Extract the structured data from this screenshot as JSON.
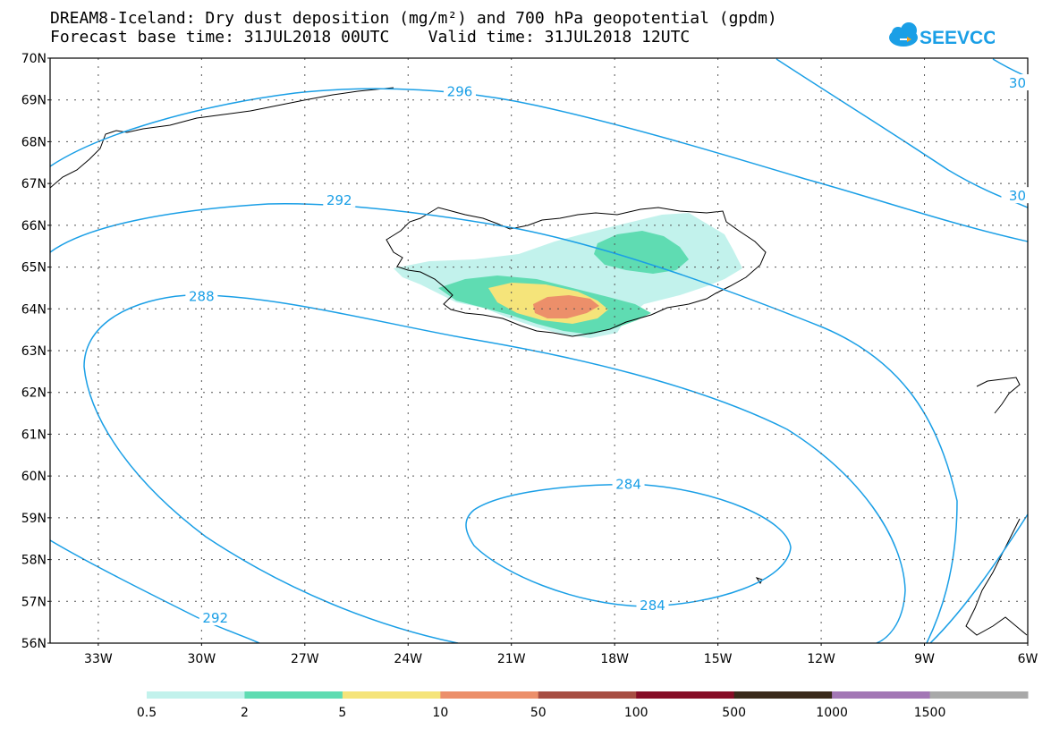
{
  "title_line1": "DREAM8-Iceland: Dry dust deposition (mg/m²) and 700 hPa geopotential (gpdm)",
  "title_line2": "Forecast base time: 31JUL2018 00UTC    Valid time: 31JUL2018 12UTC",
  "logo_text": "SEEVCCC",
  "lat_labels": [
    "70N",
    "69N",
    "68N",
    "67N",
    "66N",
    "65N",
    "64N",
    "63N",
    "62N",
    "61N",
    "60N",
    "59N",
    "58N",
    "57N",
    "56N"
  ],
  "lon_labels": [
    "33W",
    "30W",
    "27W",
    "24W",
    "21W",
    "18W",
    "15W",
    "12W",
    "9W",
    "6W"
  ],
  "contour_labels": [
    {
      "text": "296",
      "lon": -22.5,
      "lat": 69.2
    },
    {
      "text": "292",
      "lon": -26.0,
      "lat": 66.6
    },
    {
      "text": "288",
      "lon": -30.0,
      "lat": 64.3
    },
    {
      "text": "292",
      "lon": -29.6,
      "lat": 56.6
    },
    {
      "text": "284",
      "lon": -17.6,
      "lat": 59.8
    },
    {
      "text": "284",
      "lon": -16.9,
      "lat": 56.9
    },
    {
      "text": "30",
      "lon": -6.3,
      "lat": 69.4
    },
    {
      "text": "30",
      "lon": -6.3,
      "lat": 66.7
    }
  ],
  "colorbar": {
    "ticks": [
      "0.5",
      "2",
      "5",
      "10",
      "50",
      "100",
      "500",
      "1000",
      "1500"
    ],
    "colors": [
      "#c2f2ec",
      "#5fdcb2",
      "#f5e47a",
      "#ec8f6a",
      "#a74e43",
      "#860d26",
      "#3a2a1a",
      "#a377b5",
      "#a9a9a9"
    ]
  },
  "colors": {
    "contour": "#1a9fe6",
    "coast": "#000000",
    "grid": "#555555"
  }
}
